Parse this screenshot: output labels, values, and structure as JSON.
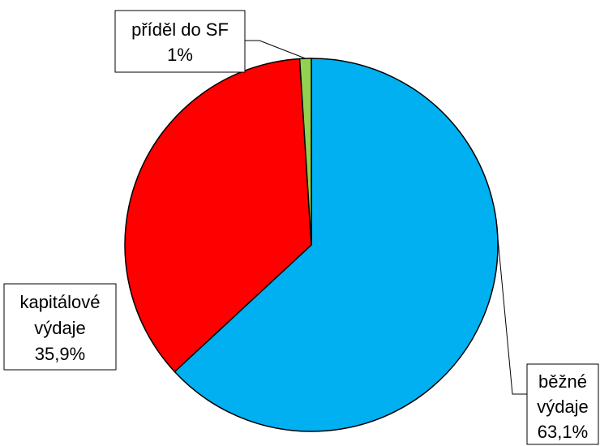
{
  "chart_data": {
    "type": "pie",
    "slices": [
      {
        "name": "běžné výdaje",
        "label_lines": [
          "běžné",
          "výdaje",
          "63,1%"
        ],
        "value": 63.1,
        "color": "#00b0f0"
      },
      {
        "name": "kapitálové výdaje",
        "label_lines": [
          "kapitálové",
          "výdaje",
          "35,9%"
        ],
        "value": 35.9,
        "color": "#ff0000"
      },
      {
        "name": "příděl do SF",
        "label_lines": [
          "příděl do SF",
          "1%"
        ],
        "value": 1,
        "color": "#92d050"
      }
    ],
    "start": "12 o'clock",
    "direction": "clockwise",
    "legend": "none",
    "data_labels": "callout boxes with leader lines"
  }
}
